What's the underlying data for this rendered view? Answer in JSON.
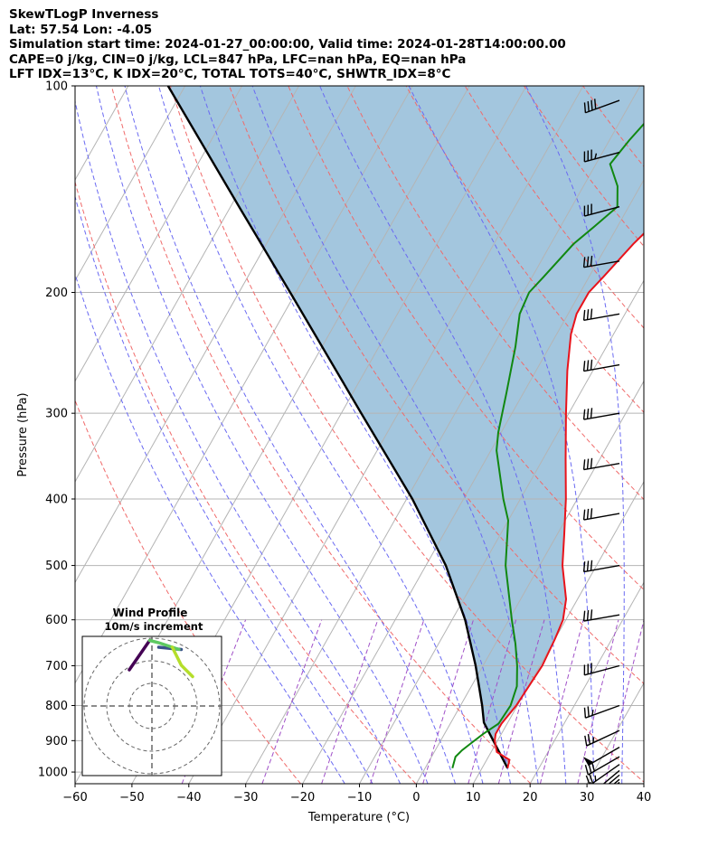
{
  "header": {
    "line1": "SkewTLogP Inverness",
    "line2": "Lat: 57.54   Lon: -4.05",
    "line3": "Simulation start time: 2024-01-27_00:00:00, Valid time: 2024-01-28T14:00:00.00",
    "line4": "CAPE=0 j/kg, CIN=0 j/kg, LCL=847 hPa, LFC=nan hPa, EQ=nan hPa",
    "line5": "LFT IDX=13°C, K IDX=20°C, TOTAL TOTS=40°C, SHWTR_IDX=8°C"
  },
  "colors": {
    "temperature": "#e8131b",
    "dewpoint": "#118811",
    "parcel": "#000000",
    "cape_fill": "#a3c6de",
    "dry_adiabats": "#f06a6a",
    "moist_adiabats": "#6a6af2",
    "mixing_ratio": "#a050c8",
    "isotherms": "#b4b4b4"
  },
  "chart_data": {
    "type": "line",
    "title": "SkewTLogP Inverness",
    "xlabel": "Temperature (°C)",
    "ylabel": "Pressure (hPa)",
    "xlim": [
      -60,
      40
    ],
    "ylim": [
      1040,
      100
    ],
    "y_scale": "log",
    "xticks": [
      "−60",
      "−50",
      "−40",
      "−30",
      "−20",
      "−10",
      "0",
      "10",
      "20",
      "30",
      "40"
    ],
    "yticks": [
      "100",
      "200",
      "300",
      "400",
      "500",
      "600",
      "700",
      "800",
      "900",
      "1000"
    ],
    "grid": true,
    "series": [],
    "temperature_profile": [
      [
        987,
        14.5
      ],
      [
        960,
        14.0
      ],
      [
        935,
        11.0
      ],
      [
        900,
        9.5
      ],
      [
        880,
        9.0
      ],
      [
        850,
        9.0
      ],
      [
        800,
        9.8
      ],
      [
        700,
        10.4
      ],
      [
        640,
        10.0
      ],
      [
        600,
        9.5
      ],
      [
        560,
        8.0
      ],
      [
        500,
        4.0
      ],
      [
        450,
        1.2
      ],
      [
        400,
        -2.0
      ],
      [
        350,
        -6.0
      ],
      [
        300,
        -10.5
      ],
      [
        260,
        -14.5
      ],
      [
        230,
        -17.5
      ],
      [
        215,
        -18.5
      ],
      [
        200,
        -18.5
      ],
      [
        190,
        -17.5
      ],
      [
        170,
        -15.5
      ],
      [
        150,
        -12.5
      ],
      [
        120,
        -5.5
      ],
      [
        110,
        -2.5
      ],
      [
        100,
        -0.5
      ]
    ],
    "dewpoint_profile": [
      [
        987,
        4.8
      ],
      [
        950,
        4.2
      ],
      [
        930,
        4.7
      ],
      [
        910,
        5.5
      ],
      [
        880,
        6.8
      ],
      [
        850,
        8.5
      ],
      [
        800,
        8.8
      ],
      [
        750,
        8.0
      ],
      [
        700,
        6.0
      ],
      [
        650,
        3.5
      ],
      [
        600,
        0.5
      ],
      [
        500,
        -6.0
      ],
      [
        430,
        -10.0
      ],
      [
        400,
        -13.0
      ],
      [
        340,
        -19.0
      ],
      [
        320,
        -20.5
      ],
      [
        280,
        -23.0
      ],
      [
        240,
        -26.0
      ],
      [
        215,
        -28.5
      ],
      [
        200,
        -29.0
      ],
      [
        190,
        -28.0
      ],
      [
        170,
        -26.0
      ],
      [
        160,
        -24.0
      ],
      [
        150,
        -22.0
      ],
      [
        140,
        -24.0
      ],
      [
        130,
        -27.5
      ],
      [
        120,
        -26.5
      ],
      [
        110,
        -25.0
      ],
      [
        100,
        -24.0
      ]
    ],
    "parcel_profile": [
      [
        987,
        14.5
      ],
      [
        847,
        5.8
      ],
      [
        800,
        3.8
      ],
      [
        700,
        -1.3
      ],
      [
        600,
        -7.7
      ],
      [
        500,
        -16.5
      ],
      [
        400,
        -29.0
      ],
      [
        300,
        -46.5
      ],
      [
        250,
        -57.5
      ],
      [
        200,
        -71.0
      ],
      [
        150,
        -88.5
      ],
      [
        100,
        -113.0
      ]
    ],
    "wind_barbs": [
      {
        "p": 105,
        "speed_kt": 40,
        "dir": 250
      },
      {
        "p": 125,
        "speed_kt": 35,
        "dir": 255
      },
      {
        "p": 150,
        "speed_kt": 30,
        "dir": 255
      },
      {
        "p": 180,
        "speed_kt": 30,
        "dir": 260
      },
      {
        "p": 215,
        "speed_kt": 30,
        "dir": 260
      },
      {
        "p": 255,
        "speed_kt": 30,
        "dir": 260
      },
      {
        "p": 300,
        "speed_kt": 30,
        "dir": 260
      },
      {
        "p": 355,
        "speed_kt": 30,
        "dir": 260
      },
      {
        "p": 420,
        "speed_kt": 30,
        "dir": 260
      },
      {
        "p": 500,
        "speed_kt": 30,
        "dir": 260
      },
      {
        "p": 590,
        "speed_kt": 30,
        "dir": 260
      },
      {
        "p": 700,
        "speed_kt": 30,
        "dir": 255
      },
      {
        "p": 800,
        "speed_kt": 25,
        "dir": 250
      },
      {
        "p": 870,
        "speed_kt": 25,
        "dir": 245
      },
      {
        "p": 920,
        "speed_kt": 50,
        "dir": 240
      },
      {
        "p": 950,
        "speed_kt": 30,
        "dir": 240
      },
      {
        "p": 975,
        "speed_kt": 25,
        "dir": 235
      },
      {
        "p": 995,
        "speed_kt": 20,
        "dir": 230
      },
      {
        "p": 1010,
        "speed_kt": 20,
        "dir": 230
      },
      {
        "p": 1025,
        "speed_kt": 15,
        "dir": 230
      },
      {
        "p": 1035,
        "speed_kt": 15,
        "dir": 230
      }
    ],
    "hodograph": {
      "title": "Wind Profile",
      "subtitle": "10m/s increment",
      "rings_ms": [
        10,
        20,
        30
      ],
      "segments": [
        {
          "color": "#440154",
          "points": [
            [
              -10,
              16
            ],
            [
              -1,
              29
            ]
          ]
        },
        {
          "color": "#3b528b",
          "points": [
            [
              3,
              26
            ],
            [
              13,
              25
            ]
          ]
        },
        {
          "color": "#5ec962",
          "points": [
            [
              -1,
              29
            ],
            [
              3,
              28
            ],
            [
              9,
              26
            ],
            [
              12,
              25
            ]
          ]
        },
        {
          "color": "#b5de2b",
          "points": [
            [
              9,
              26
            ],
            [
              13,
              18
            ],
            [
              18,
              13
            ]
          ]
        }
      ]
    }
  }
}
